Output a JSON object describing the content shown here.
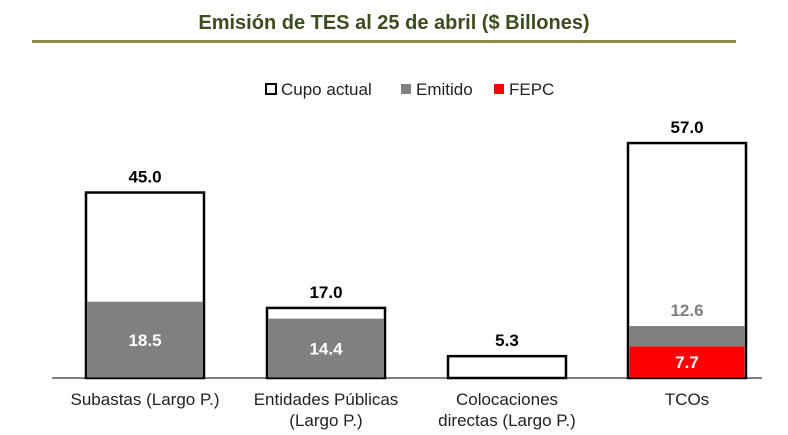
{
  "chart_data": {
    "type": "bar",
    "title": "Emisión de TES al 25 de abril ($ Billones)",
    "categories": [
      [
        "Subastas (Largo P.)"
      ],
      [
        "Entidades Públicas",
        "(Largo P.)"
      ],
      [
        "Colocaciones",
        "directas (Largo P.)"
      ],
      [
        "TCOs"
      ]
    ],
    "series": [
      {
        "name": "Cupo actual",
        "values": [
          45.0,
          17.0,
          5.3,
          57.0
        ]
      },
      {
        "name": "Emitido",
        "values": [
          18.5,
          14.4,
          null,
          12.6
        ]
      },
      {
        "name": "FEPC",
        "values": [
          null,
          null,
          null,
          7.7
        ]
      }
    ],
    "value_labels": {
      "totals": [
        "45.0",
        "17.0",
        "5.3",
        "57.0"
      ],
      "emitido": [
        "18.5",
        "14.4",
        null,
        "12.6"
      ],
      "fepc": [
        null,
        null,
        null,
        "7.7"
      ]
    },
    "ylim": [
      0,
      60
    ],
    "grid": false,
    "legend_position": "top-right",
    "colors": {
      "cupo_fill": "#ffffff",
      "cupo_stroke": "#000000",
      "emitido": "#808080",
      "fepc": "#ff0000",
      "title": "#3d4c1e"
    }
  }
}
